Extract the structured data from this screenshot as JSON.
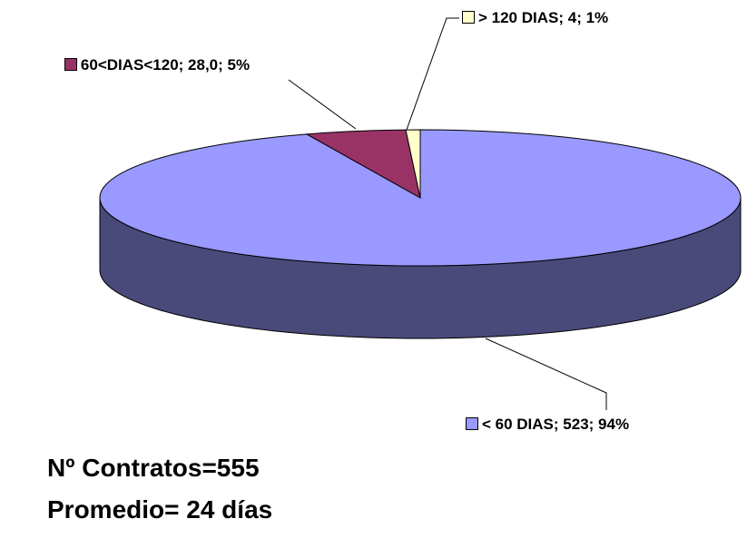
{
  "chart_data": {
    "type": "pie3d",
    "categories": [
      "< 60 DIAS",
      "60<DIAS<120",
      "> 120 DIAS"
    ],
    "values": [
      523,
      28,
      4
    ],
    "labels": [
      "< 60 DIAS; 523; 94%",
      "60<DIAS<120; 28,0; 5%",
      "> 120 DIAS; 4; 1%"
    ],
    "colors": [
      "#9999ff",
      "#993366",
      "#ffffcc"
    ],
    "annotations": [
      "Nº Contratos=555",
      "Promedio= 24 días"
    ]
  }
}
